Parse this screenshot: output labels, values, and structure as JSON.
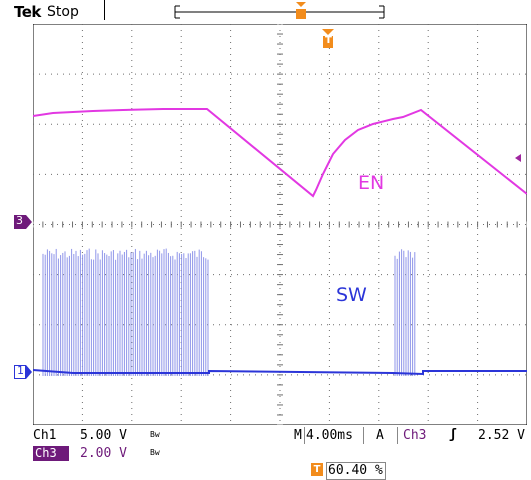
{
  "header": {
    "brand": "Tek",
    "status": "Stop"
  },
  "labels": {
    "en": "EN",
    "sw": "SW"
  },
  "markers": {
    "ch3": "3",
    "ch1": "1",
    "trigger_top": "T"
  },
  "readouts": {
    "ch1_label": "Ch1",
    "ch1_scale": "5.00 V",
    "ch3_label": "Ch3",
    "ch3_scale": "2.00 V",
    "bw_symbol": "Bw",
    "time_label": "M",
    "time_scale": "4.00ms",
    "acq_label": "A",
    "trig_source": "Ch3",
    "trig_slope": "ʃ",
    "trig_level": "2.52 V",
    "trig_position": "60.40 %",
    "trig_icon": "T"
  },
  "colors": {
    "ch3": "#e238e2",
    "ch1": "#2b35d8",
    "trigger": "#f28c1c",
    "grid": "#6d6d6d"
  }
}
